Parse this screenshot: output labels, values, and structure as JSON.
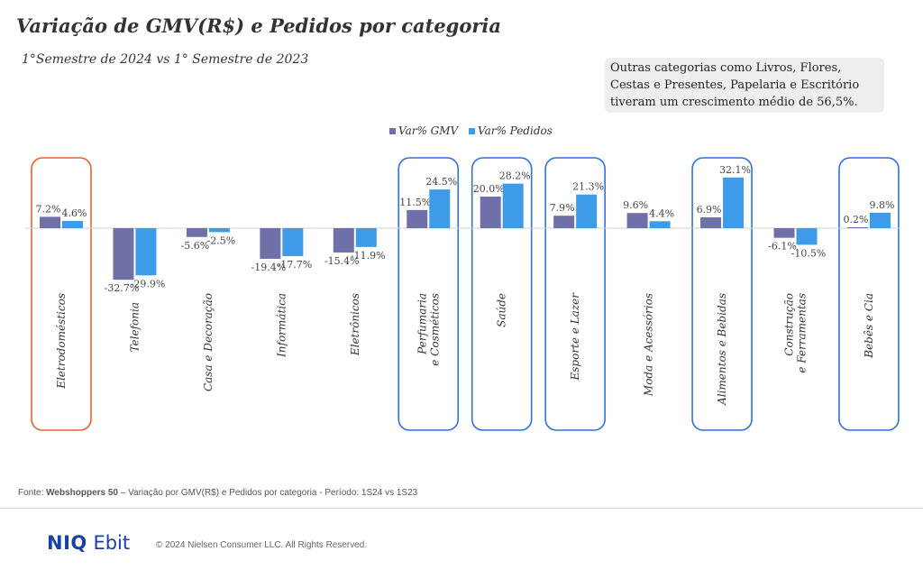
{
  "header": {
    "title": "Variação de GMV(R$) e Pedidos por categoria",
    "subtitle": "1°Semestre de 2024 vs 1° Semestre de 2023"
  },
  "note": "Outras categorias como Livros, Flores, Cestas e Presentes, Papelaria e Escritório tiveram um crescimento médio de 56,5%.",
  "chart_data": {
    "type": "bar",
    "categories": [
      "Eletrodomésticos",
      "Telefonia",
      "Casa e Decoração",
      "Informática",
      "Eletrônicos",
      "Perfumaria e Cosméticos",
      "Saúde",
      "Esporte e Lazer",
      "Moda e Acessórios",
      "Alimentos e Bebidas",
      "Construção e Ferramentas",
      "Bebês e Cia"
    ],
    "series": [
      {
        "name": "Var% GMV",
        "color": "#6f70a8",
        "values": [
          7.2,
          -32.7,
          -5.6,
          -19.4,
          -15.4,
          11.5,
          20.0,
          7.9,
          9.6,
          6.9,
          -6.1,
          0.2
        ]
      },
      {
        "name": "Var% Pedidos",
        "color": "#3d9be9",
        "values": [
          4.6,
          -29.9,
          -2.5,
          -17.7,
          -11.9,
          24.5,
          28.2,
          21.3,
          4.4,
          32.1,
          -10.5,
          9.8
        ]
      }
    ],
    "value_labels": {
      "gmv": [
        "7.2%",
        "-32.7%",
        "-5.6%",
        "-19.4%",
        "-15.4%",
        "11.5%",
        "20.0%",
        "7.9%",
        "9.6%",
        "6.9%",
        "-6.1%",
        "0.2%"
      ],
      "pedidos": [
        "4.6%",
        "-29.9%",
        "-2.5%",
        "-17.7%",
        "-11.9%",
        "24.5%",
        "28.2%",
        "21.3%",
        "4.4%",
        "32.1%",
        "-10.5%",
        "9.8%"
      ]
    },
    "highlights": [
      {
        "index": 0,
        "color": "#e8602c"
      },
      {
        "index": 5,
        "color": "#2f6fe0"
      },
      {
        "index": 6,
        "color": "#2f6fe0"
      },
      {
        "index": 7,
        "color": "#2f6fe0"
      },
      {
        "index": 9,
        "color": "#2f6fe0"
      },
      {
        "index": 11,
        "color": "#2f6fe0"
      }
    ],
    "legend_position": "top-center",
    "grid": false
  },
  "footer": {
    "source_prefix": "Fonte: ",
    "source_bold": "Webshoppers 50",
    "source_text": "  – Variação por GMV(R$)  e Pedidos por categoria - Período: 1S24 vs 1S23",
    "logo_bold": "NIQ",
    "logo_text": "Ebit",
    "copyright": "© 2024 Nielsen Consumer LLC. All Rights Reserved."
  }
}
